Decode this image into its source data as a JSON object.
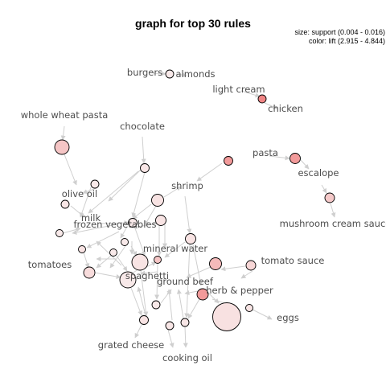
{
  "title": "graph for top 30 rules",
  "legend": {
    "size": "size: support (0.004 - 0.016)",
    "color": "color: lift (2.915 - 4.844)"
  },
  "colors": {
    "edge": "#cfcfcf",
    "label": "#4d4d4d",
    "lift_low": "#f8e4e4",
    "lift_high": "#f08c8c"
  },
  "items": [
    "burgers",
    "almonds",
    "light cream",
    "chicken",
    "whole wheat pasta",
    "chocolate",
    "pasta",
    "escalope",
    "shrimp",
    "olive oil",
    "milk",
    "frozen vegetables",
    "mushroom cream sauce",
    "mineral water",
    "tomatoes",
    "tomato sauce",
    "spaghetti",
    "ground beef",
    "herb & pepper",
    "eggs",
    "grated cheese",
    "cooking oil"
  ]
}
